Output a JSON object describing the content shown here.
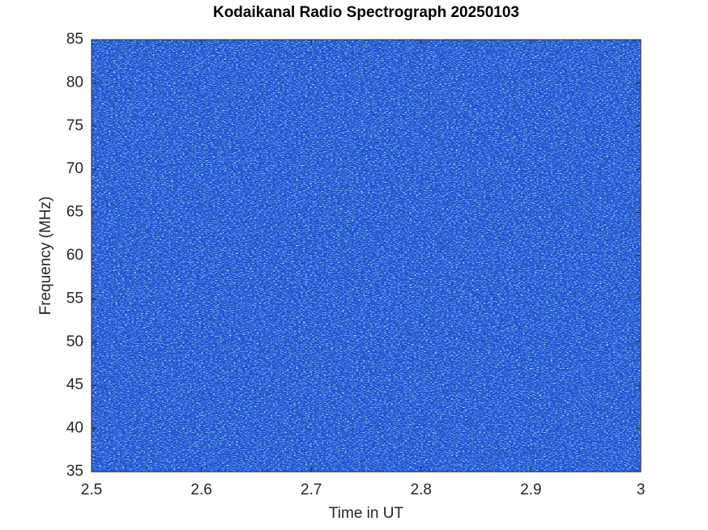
{
  "chart_data": {
    "type": "heatmap",
    "title": "Kodaikanal Radio Spectrograph  20250103",
    "x_label": "Time in UT",
    "y_label": "Frequency (MHz)",
    "xlim": [
      2.5,
      3
    ],
    "xticks": [
      2.5,
      2.6,
      2.7,
      2.8,
      2.9,
      3
    ],
    "ylim": [
      35,
      85
    ],
    "yticks": [
      35,
      40,
      45,
      50,
      55,
      60,
      65,
      70,
      75,
      80,
      85
    ]
  }
}
